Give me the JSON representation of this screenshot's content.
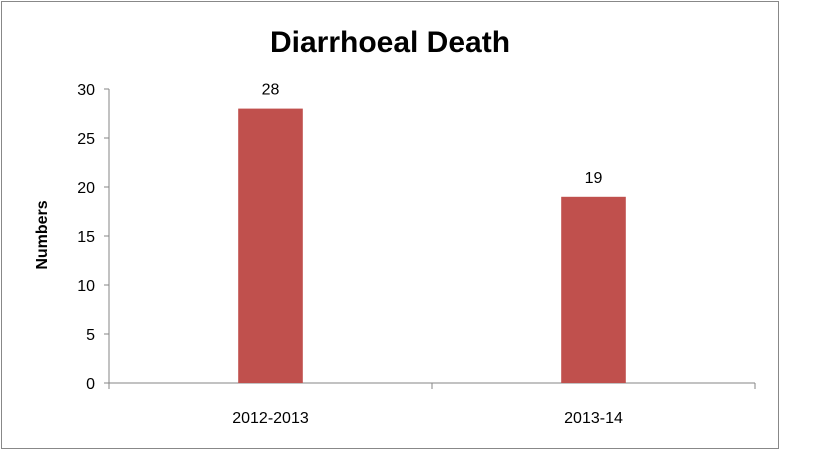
{
  "chart_data": {
    "type": "bar",
    "title": "Diarrhoeal Death",
    "xlabel": "",
    "ylabel": "Numbers",
    "categories": [
      "2012-2013",
      "2013-14"
    ],
    "values": [
      28,
      19
    ],
    "data_labels": [
      "28",
      "19"
    ],
    "ylim": [
      0,
      30
    ],
    "yticks": [
      0,
      5,
      10,
      15,
      20,
      25,
      30
    ],
    "ytick_labels": [
      "0",
      "5",
      "10",
      "15",
      "20",
      "25",
      "30"
    ],
    "grid": false,
    "legend": "none",
    "bar_color": "#C0504D"
  }
}
